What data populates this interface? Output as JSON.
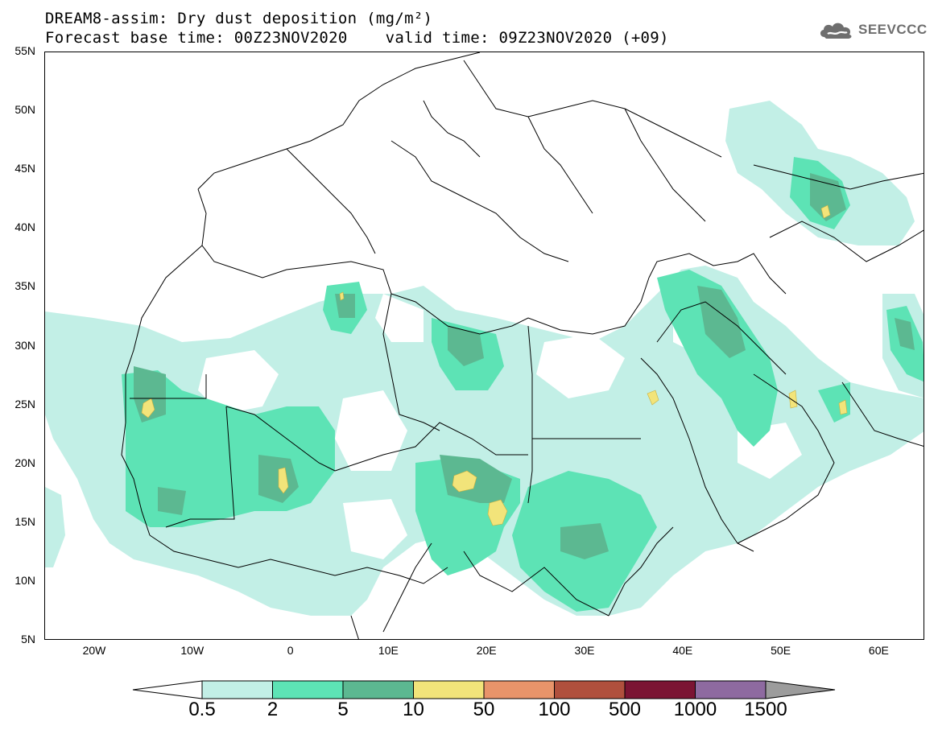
{
  "title_line1": "DREAM8-assim: Dry dust deposition (mg/m²)",
  "title_line2": "Forecast base time: 00Z23NOV2020    valid time: 09Z23NOV2020 (+09)",
  "logo_text": "SEEVCCC",
  "lat_labels": [
    "55N",
    "50N",
    "45N",
    "40N",
    "35N",
    "30N",
    "25N",
    "20N",
    "15N",
    "10N",
    "5N"
  ],
  "lon_labels": [
    "20W",
    "10W",
    "0",
    "10E",
    "20E",
    "30E",
    "40E",
    "50E",
    "60E"
  ],
  "colorbar": {
    "labels": [
      "0.5",
      "2",
      "5",
      "10",
      "50",
      "100",
      "500",
      "1000",
      "1500"
    ],
    "colors": [
      "#c2efe6",
      "#5de3b5",
      "#5cb891",
      "#f2e47a",
      "#e8946a",
      "#b0503d",
      "#7b1433",
      "#8e6aa0"
    ],
    "under_color": "#ffffff",
    "over_color": "#9c9c9c"
  }
}
